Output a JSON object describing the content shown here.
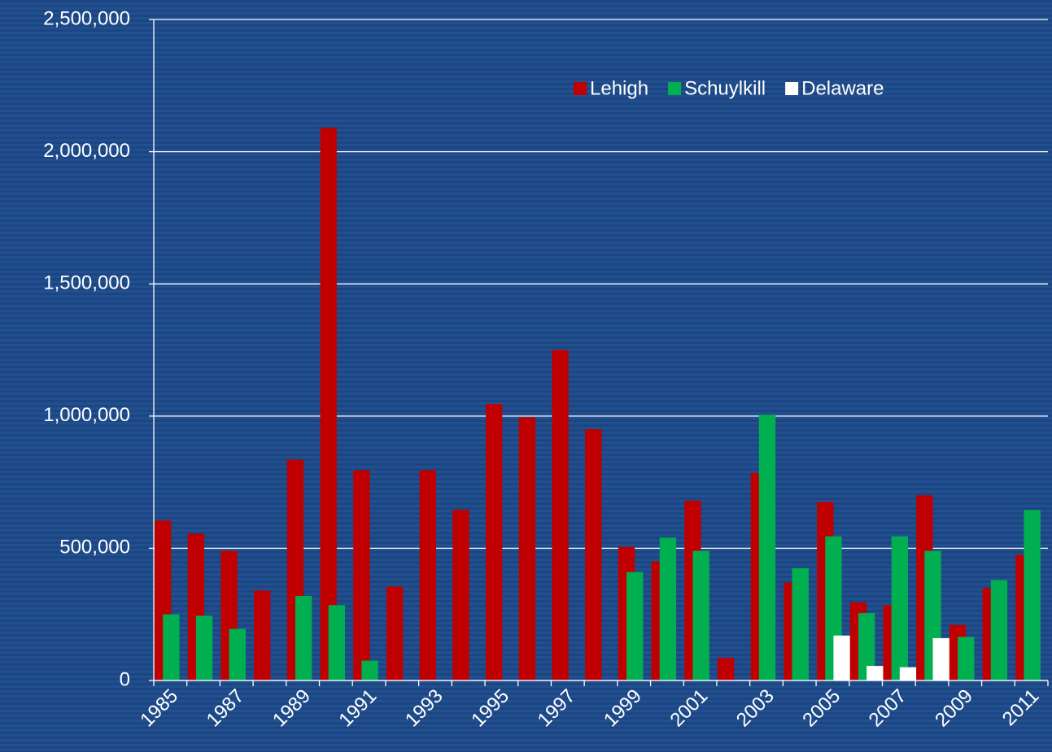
{
  "chart_data": {
    "type": "bar",
    "categories": [
      "1985",
      null,
      "1987",
      null,
      "1989",
      null,
      "1991",
      null,
      "1993",
      null,
      "1995",
      null,
      "1997",
      null,
      "1999",
      null,
      "2001",
      null,
      "2003",
      null,
      "2005",
      null,
      "2007",
      null,
      "2009",
      null,
      "2011"
    ],
    "series": [
      {
        "name": "Lehigh",
        "color": "#c00000",
        "values": [
          605000,
          555000,
          490000,
          340000,
          835000,
          2090000,
          795000,
          355000,
          795000,
          645000,
          1045000,
          995000,
          1250000,
          950000,
          505000,
          450000,
          680000,
          85000,
          785000,
          370000,
          675000,
          295000,
          285000,
          700000,
          210000,
          350000,
          475000
        ]
      },
      {
        "name": "Schuylkill",
        "color": "#00b050",
        "values": [
          250000,
          245000,
          195000,
          null,
          320000,
          285000,
          75000,
          null,
          null,
          null,
          null,
          null,
          null,
          null,
          410000,
          540000,
          490000,
          null,
          1005000,
          425000,
          545000,
          255000,
          545000,
          490000,
          165000,
          380000,
          645000
        ]
      },
      {
        "name": "Delaware",
        "color": "#ffffff",
        "values": [
          null,
          null,
          null,
          null,
          null,
          null,
          null,
          null,
          null,
          null,
          null,
          null,
          null,
          null,
          null,
          null,
          null,
          null,
          null,
          null,
          170000,
          55000,
          50000,
          160000,
          null,
          null,
          null
        ]
      }
    ],
    "ylim": [
      0,
      2500000
    ],
    "yticks": [
      0,
      {
        "value": 500000,
        "label": "500,000"
      },
      {
        "value": 1000000,
        "label": "1,000,000"
      },
      {
        "value": 1500000,
        "label": "1,500,000"
      },
      {
        "value": 2000000,
        "label": "2,000,000"
      },
      {
        "value": 2500000,
        "label": "2,500,000"
      }
    ],
    "grid": true,
    "legend": "upper right"
  }
}
